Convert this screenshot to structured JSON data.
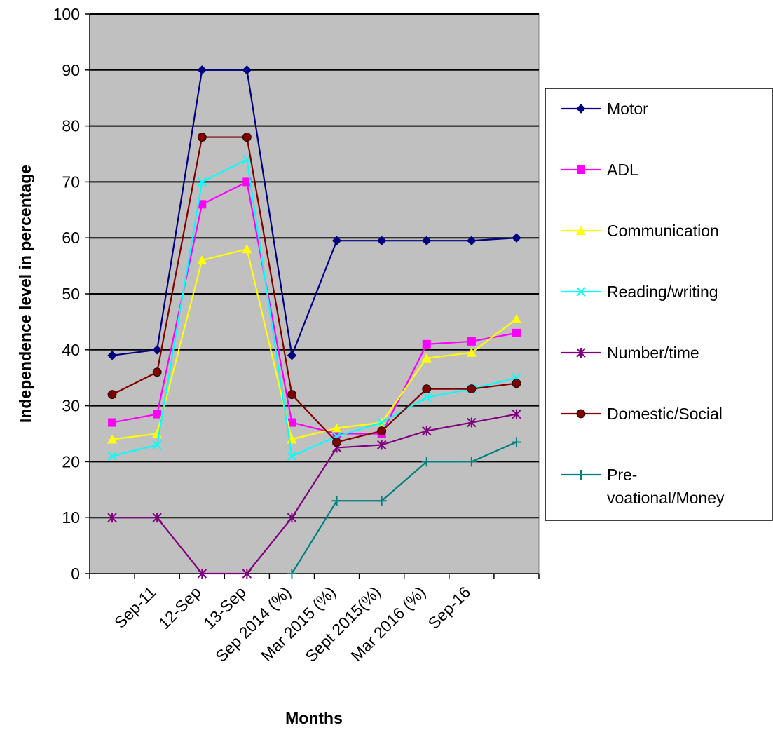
{
  "chart_data": {
    "type": "line",
    "title": "",
    "xlabel": "Months",
    "ylabel": "Independence level in percentage",
    "ylim": [
      0,
      100
    ],
    "yticks": [
      0,
      10,
      20,
      30,
      40,
      50,
      60,
      70,
      80,
      90,
      100
    ],
    "grid": "horizontal",
    "legend_position": "right",
    "plot_background": "#c0c0c0",
    "categories": [
      "",
      "Sep-11",
      "12-Sep",
      "13-Sep",
      "Sep 2014 (%)",
      "Mar 2015 (%)",
      "Sept 2015(%)",
      "Mar 2016 (%)",
      "Sep-16",
      ""
    ],
    "series": [
      {
        "name": "Motor",
        "color": "#000080",
        "marker": "diamond",
        "values": [
          39,
          40,
          90,
          90,
          39,
          59.5,
          59.5,
          59.5,
          59.5,
          60
        ]
      },
      {
        "name": "ADL",
        "color": "#ff00ff",
        "marker": "square",
        "values": [
          27,
          28.5,
          66,
          70,
          27,
          25,
          25,
          41,
          41.5,
          43
        ]
      },
      {
        "name": "Communication",
        "color": "#ffff00",
        "marker": "triangle",
        "values": [
          24,
          25,
          56,
          58,
          24,
          26,
          27,
          38.5,
          39.5,
          45.5
        ]
      },
      {
        "name": "Reading/writing",
        "color": "#00ffff",
        "marker": "x",
        "values": [
          21,
          23,
          70,
          74,
          21,
          24.5,
          27,
          31.5,
          33,
          35
        ]
      },
      {
        "name": "Number/time",
        "color": "#800080",
        "marker": "star",
        "values": [
          10,
          10,
          0,
          0,
          10,
          22.5,
          23,
          25.5,
          27,
          28.5
        ]
      },
      {
        "name": "Domestic/Social",
        "color": "#800000",
        "marker": "circle",
        "values": [
          32,
          36,
          78,
          78,
          32,
          23.5,
          25.5,
          33,
          33,
          34
        ]
      },
      {
        "name": "Pre-\nvoational/Money",
        "color": "#008080",
        "marker": "plus",
        "values": [
          null,
          null,
          null,
          null,
          0,
          13,
          13,
          20,
          20,
          23.5
        ]
      }
    ]
  }
}
